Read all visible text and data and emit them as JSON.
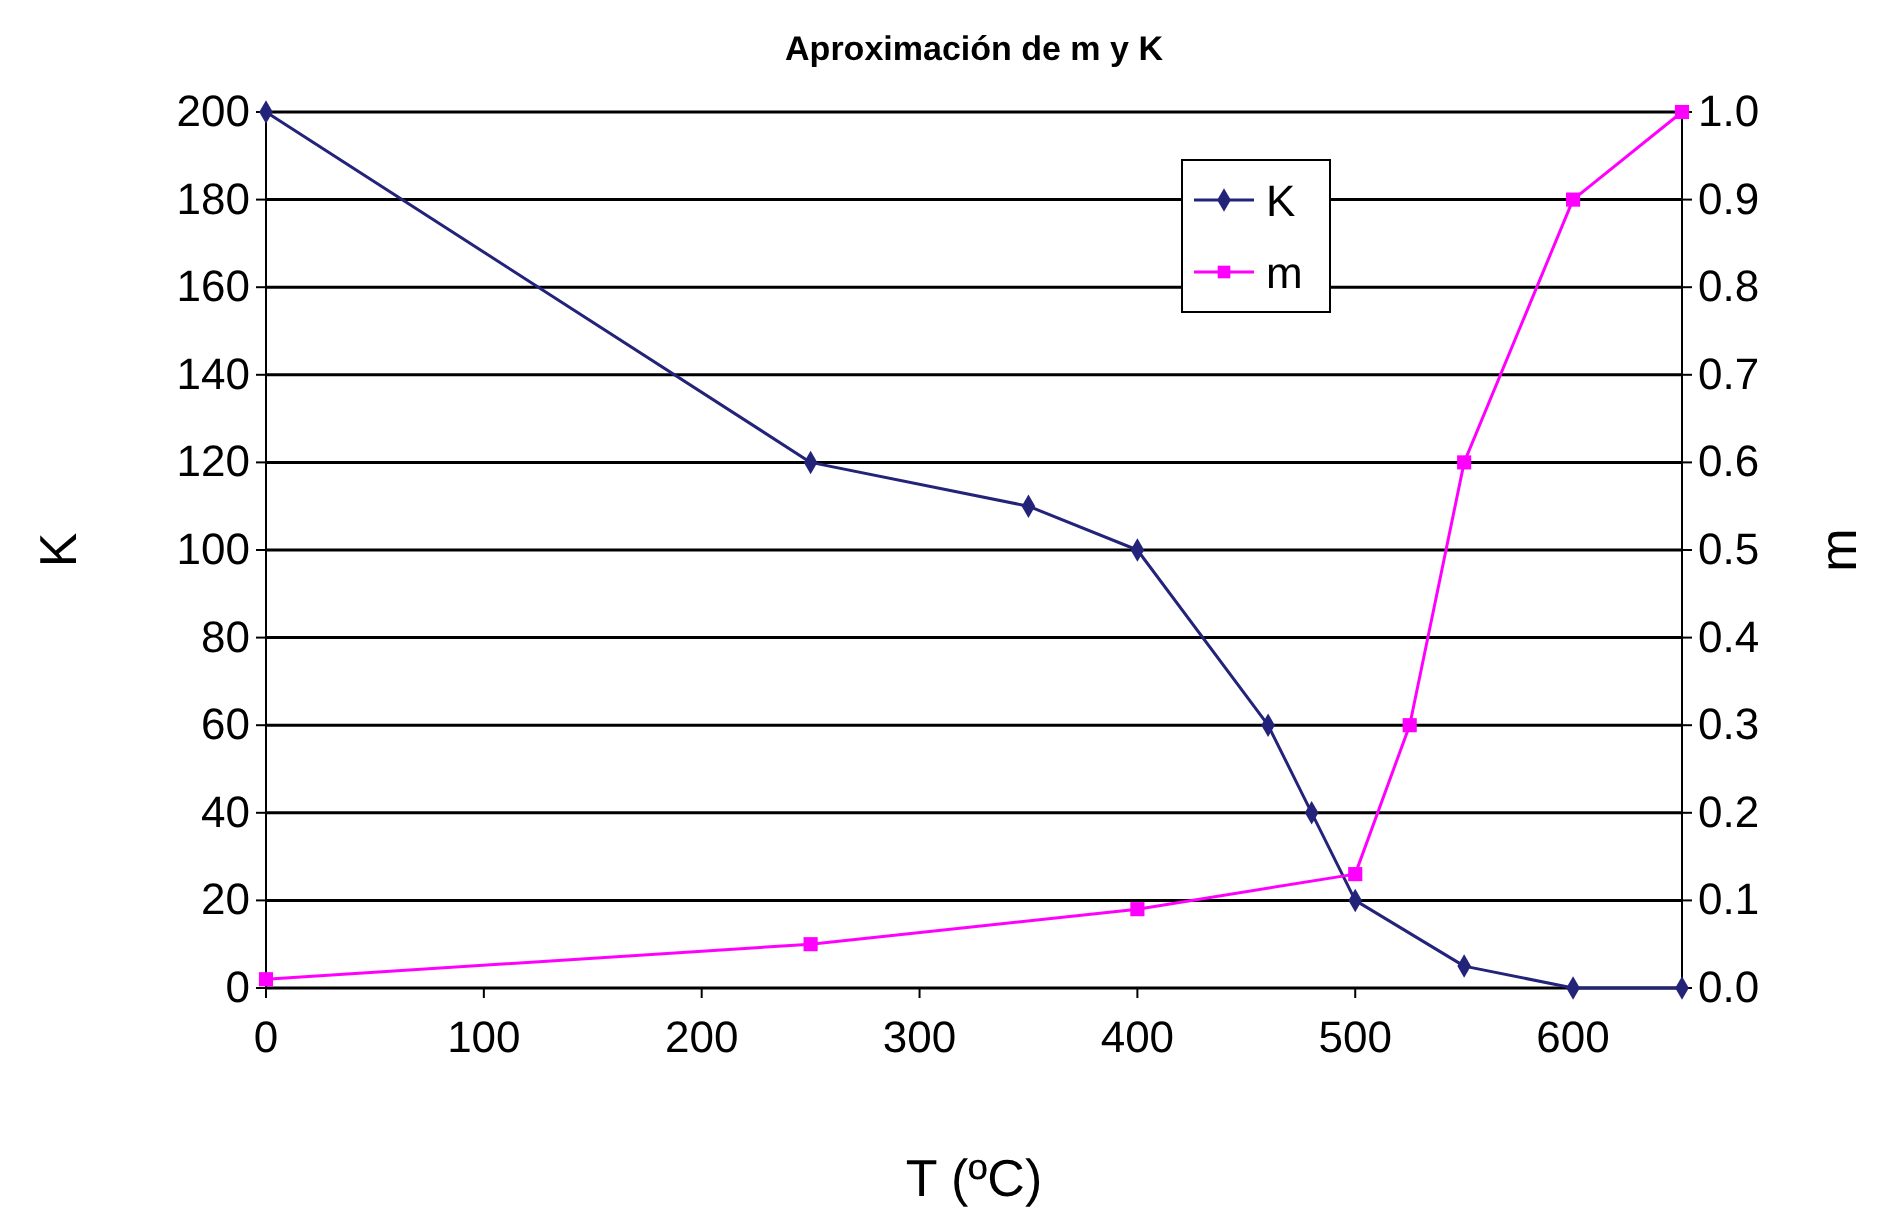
{
  "chart_data": {
    "type": "line",
    "title": "Aproximación de m y K",
    "xlabel": "T (ºC)",
    "ylabel": "K",
    "y2label": "m",
    "xlim": [
      0,
      650
    ],
    "xticks": [
      0,
      100,
      200,
      300,
      400,
      500,
      600
    ],
    "ylim": [
      0,
      200
    ],
    "yticks": [
      0,
      20,
      40,
      60,
      80,
      100,
      120,
      140,
      160,
      180,
      200
    ],
    "y2lim": [
      0,
      1
    ],
    "y2ticks": [
      {
        "value": 0,
        "label": "0.0"
      },
      {
        "value": 0.1,
        "label": "0.1"
      },
      {
        "value": 0.2,
        "label": "0.2"
      },
      {
        "value": 0.3,
        "label": "0.3"
      },
      {
        "value": 0.4,
        "label": "0.4"
      },
      {
        "value": 0.5,
        "label": "0.5"
      },
      {
        "value": 0.6,
        "label": "0.6"
      },
      {
        "value": 0.7,
        "label": "0.7"
      },
      {
        "value": 0.8,
        "label": "0.8"
      },
      {
        "value": 0.9,
        "label": "0.9"
      },
      {
        "value": 1,
        "label": "1.0"
      }
    ],
    "grid": "y",
    "legend": "top right",
    "series": [
      {
        "name": "K",
        "color": "#23237a",
        "marker": "diamond",
        "x": [
          0,
          250,
          350,
          400,
          460,
          480,
          500,
          550,
          600,
          650
        ],
        "values": [
          200,
          120,
          110,
          100,
          60,
          40,
          20,
          5,
          0,
          0
        ]
      },
      {
        "name": "m",
        "color": "#ff00ff",
        "marker": "square",
        "axis": "y2",
        "x": [
          0,
          250,
          400,
          500,
          525,
          550,
          600,
          650
        ],
        "values": [
          0.01,
          0.05,
          0.09,
          0.13,
          0.3,
          0.6,
          0.9,
          1.0
        ]
      }
    ]
  }
}
